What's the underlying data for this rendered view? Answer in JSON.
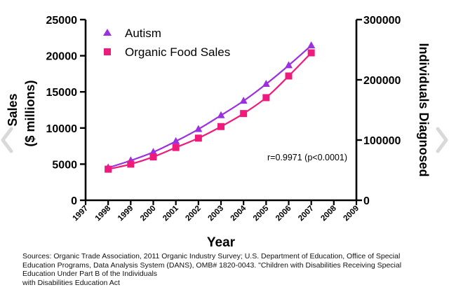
{
  "chart_data": {
    "type": "line",
    "title": "",
    "xlabel": "Year",
    "ylabel_left_line1": "Sales",
    "ylabel_left_line2": "($ millions)",
    "ylabel_right": "Individuals Diagnosed",
    "x_ticks": [
      "1997",
      "1998",
      "1999",
      "2000",
      "2001",
      "2002",
      "2003",
      "2004",
      "2005",
      "2006",
      "2007",
      "2008",
      "2009"
    ],
    "y_left_ticks": [
      "0",
      "5000",
      "10000",
      "15000",
      "20000",
      "25000"
    ],
    "y_right_ticks": [
      "0",
      "100000",
      "200000",
      "300000"
    ],
    "xlim": [
      1997,
      2009
    ],
    "ylim_left": [
      0,
      25000
    ],
    "ylim_right": [
      0,
      300000
    ],
    "grid": false,
    "legend_position": "top-left",
    "series": [
      {
        "name": "Autism",
        "axis": "right",
        "marker": "triangle",
        "color": "#9b30e0",
        "x": [
          1998,
          1999,
          2000,
          2001,
          2002,
          2003,
          2004,
          2005,
          2006,
          2007
        ],
        "values": [
          54000,
          66000,
          80000,
          98000,
          118000,
          141000,
          165000,
          193000,
          224000,
          257000
        ]
      },
      {
        "name": "Organic Food Sales",
        "axis": "left",
        "marker": "square",
        "color": "#ee1b7c",
        "x": [
          1998,
          1999,
          2000,
          2001,
          2002,
          2003,
          2004,
          2005,
          2006,
          2007
        ],
        "values": [
          4300,
          5000,
          6000,
          7300,
          8600,
          10200,
          12000,
          14200,
          17200,
          20400
        ]
      }
    ],
    "annotation": "r=0.9971 (p<0.0001)"
  },
  "sources": {
    "line1": "Sources: Organic Trade Association,  2011 Organic Industry Survey; U.S. Department of Education, Office of Special",
    "line2": "Education Programs, Data Analysis System (DANS), OMB# 1820-0043. \"Children with Disabilities Receiving Special",
    "line3": "Education Under Part B of the Individuals",
    "line4": "with Disabilities Education Act"
  }
}
